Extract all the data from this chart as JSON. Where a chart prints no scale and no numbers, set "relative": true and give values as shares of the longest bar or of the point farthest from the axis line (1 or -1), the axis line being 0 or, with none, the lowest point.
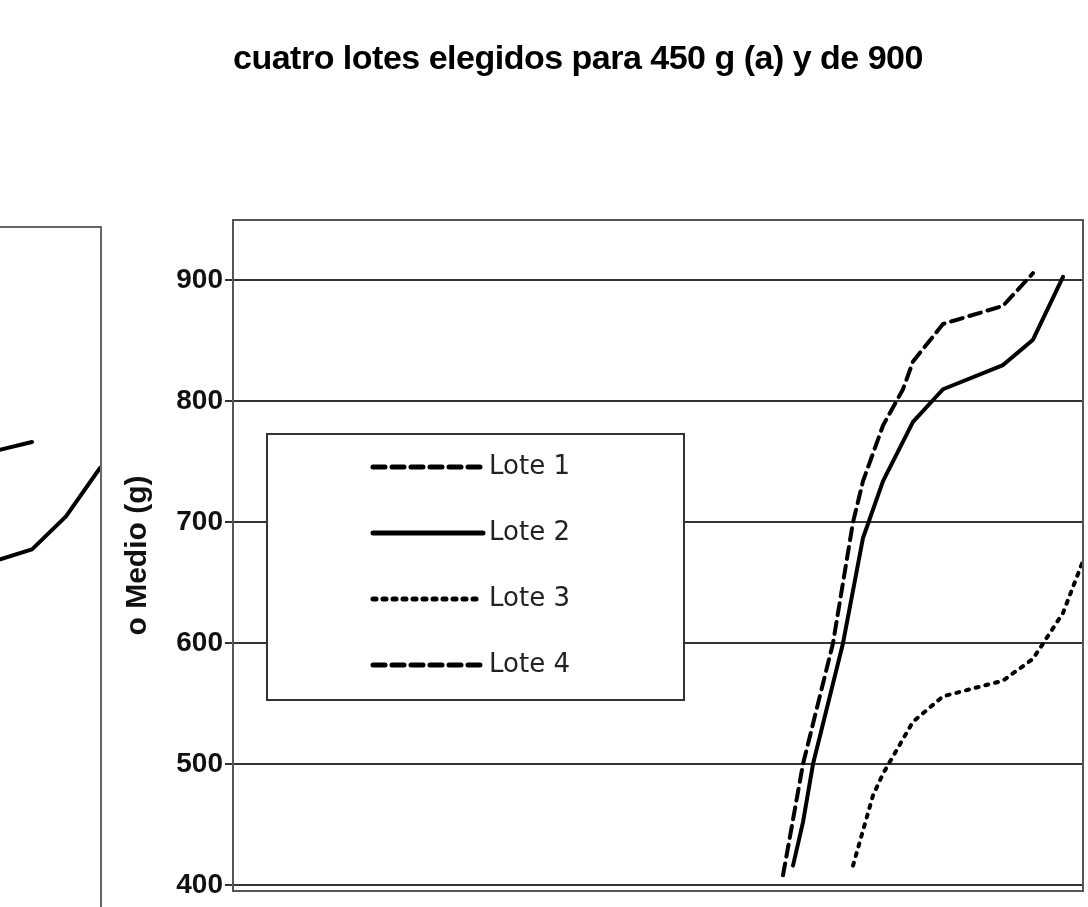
{
  "chart_data": [
    {
      "type": "line",
      "relative": true,
      "tick_labels": false,
      "categories": [
        null,
        null,
        null,
        null
      ],
      "series": [
        {
          "color": "#000000",
          "line_style": "solid",
          "values": [
            0.93,
            1,
            null,
            null
          ]
        },
        {
          "color": "#000000",
          "line_style": "solid",
          "values": [
            0,
            0.09,
            0.37,
            0.78
          ]
        }
      ]
    },
    {
      "type": "line",
      "title": "cuatro lotes elegidos para 450 g (a) y de 900",
      "ylabel": "o Medio (g)",
      "tick_labels": "y",
      "grid": "y",
      "legend": "left",
      "ylim": [
        395,
        950
      ],
      "yticks": [
        400,
        500,
        600,
        700,
        800,
        900
      ],
      "categories": [
        null,
        null,
        null,
        null,
        null,
        null,
        null,
        null,
        null,
        null,
        null,
        null,
        null,
        null,
        null,
        null,
        null,
        null,
        null,
        null,
        null,
        null,
        null,
        null,
        null,
        null,
        null,
        null,
        null,
        null,
        null,
        null,
        null,
        null,
        null,
        null,
        null,
        null,
        null,
        null,
        null,
        null,
        null,
        null,
        null,
        null,
        null,
        null,
        null,
        null,
        null,
        null,
        null,
        null,
        null,
        null,
        null,
        null,
        null,
        null,
        null,
        null,
        null,
        null,
        null,
        null,
        null,
        null,
        null,
        null,
        null,
        null,
        null,
        null,
        null,
        null,
        null,
        null,
        null,
        null,
        null,
        null,
        null,
        null,
        null,
        null
      ],
      "series": [
        {
          "name": "Lote 1",
          "color": "#000000",
          "line_style": "dashed",
          "values": [
            null,
            null,
            null,
            null,
            null,
            null,
            null,
            null,
            null,
            null,
            null,
            null,
            null,
            null,
            null,
            null,
            null,
            null,
            null,
            null,
            null,
            null,
            null,
            null,
            null,
            null,
            null,
            null,
            null,
            null,
            null,
            null,
            null,
            null,
            null,
            null,
            null,
            null,
            null,
            null,
            null,
            null,
            null,
            null,
            null,
            null,
            null,
            null,
            null,
            null,
            null,
            null,
            null,
            null,
            null,
            408,
            null,
            500,
            null,
            null,
            600,
            null,
            700,
            734,
            null,
            780,
            null,
            810,
            833,
            null,
            null,
            864,
            null,
            null,
            null,
            null,
            null,
            879,
            null,
            null,
            906,
            null,
            null,
            null,
            null,
            null
          ]
        },
        {
          "name": "Lote 2",
          "color": "#000000",
          "line_style": "solid",
          "values": [
            null,
            null,
            null,
            null,
            null,
            null,
            null,
            null,
            null,
            null,
            null,
            null,
            null,
            null,
            null,
            null,
            null,
            null,
            null,
            null,
            null,
            null,
            null,
            null,
            null,
            null,
            null,
            null,
            null,
            null,
            null,
            null,
            null,
            null,
            null,
            null,
            null,
            null,
            null,
            null,
            null,
            null,
            null,
            null,
            null,
            null,
            null,
            null,
            null,
            null,
            null,
            null,
            null,
            null,
            null,
            null,
            416,
            452,
            500,
            null,
            null,
            600,
            null,
            687,
            null,
            734,
            null,
            null,
            783,
            null,
            null,
            810,
            null,
            null,
            null,
            null,
            null,
            830,
            null,
            null,
            851,
            null,
            null,
            903,
            null,
            null
          ]
        },
        {
          "name": "Lote 3",
          "color": "#000000",
          "line_style": "dotted",
          "values": [
            null,
            null,
            null,
            null,
            null,
            null,
            null,
            null,
            null,
            null,
            null,
            null,
            null,
            null,
            null,
            null,
            null,
            null,
            null,
            null,
            null,
            null,
            null,
            null,
            null,
            null,
            null,
            null,
            null,
            null,
            null,
            null,
            null,
            null,
            null,
            null,
            null,
            null,
            null,
            null,
            null,
            null,
            null,
            null,
            null,
            null,
            null,
            null,
            null,
            null,
            null,
            null,
            null,
            null,
            null,
            null,
            null,
            null,
            null,
            null,
            null,
            null,
            416,
            null,
            474,
            492,
            null,
            null,
            535,
            null,
            null,
            556,
            null,
            null,
            null,
            null,
            null,
            569,
            null,
            null,
            587,
            null,
            null,
            625,
            null,
            668
          ]
        },
        {
          "name": "Lote 4",
          "color": "#000000",
          "line_style": "dashed",
          "values": [
            null,
            null,
            null,
            null,
            null,
            null,
            null,
            null,
            null,
            null,
            null,
            null,
            null,
            null,
            null,
            null,
            null,
            null,
            null,
            null,
            null,
            null,
            null,
            null,
            null,
            null,
            null,
            null,
            null,
            null,
            null,
            null,
            null,
            null,
            null,
            null,
            null,
            null,
            null,
            null,
            null,
            null,
            null,
            null,
            null,
            null,
            null,
            null,
            null,
            null,
            null,
            null,
            null,
            null,
            null,
            null,
            null,
            null,
            null,
            null,
            null,
            null,
            null,
            null,
            null,
            null,
            null,
            null,
            null,
            null,
            null,
            null,
            null,
            null,
            null,
            null,
            null,
            null,
            null,
            null,
            null,
            null,
            null,
            null,
            null,
            null
          ]
        }
      ]
    }
  ]
}
